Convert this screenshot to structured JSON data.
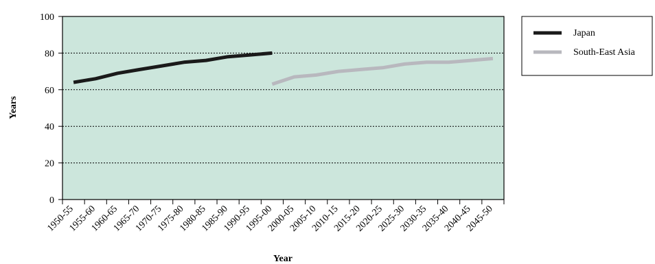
{
  "chart_data": {
    "type": "line",
    "title": "",
    "xlabel": "Year",
    "ylabel": "Years",
    "ylim": [
      0,
      100
    ],
    "yticks": [
      0,
      20,
      40,
      60,
      80,
      100
    ],
    "grid": "horizontal dotted",
    "plot_background": "#cce6dc",
    "categories": [
      "1950-55",
      "1955-60",
      "1960-65",
      "1965-70",
      "1970-75",
      "1975-80",
      "1980-85",
      "1985-90",
      "1990-95",
      "1995-00",
      "2000-05",
      "2005-10",
      "2010-15",
      "2015-20",
      "2020-25",
      "2025-30",
      "2030-35",
      "2035-40",
      "2040-45",
      "2045-50"
    ],
    "series": [
      {
        "name": "Japan",
        "color": "#1a1a1a",
        "values": [
          64,
          66,
          69,
          71,
          73,
          75,
          76,
          78,
          79,
          80,
          null,
          null,
          null,
          null,
          null,
          null,
          null,
          null,
          null,
          null
        ]
      },
      {
        "name": "South-East Asia",
        "color": "#b8b8be",
        "values": [
          null,
          null,
          null,
          null,
          null,
          null,
          null,
          null,
          null,
          63,
          67,
          68,
          70,
          71,
          72,
          74,
          75,
          75,
          76,
          77
        ]
      }
    ],
    "legend_position": "top-right"
  }
}
